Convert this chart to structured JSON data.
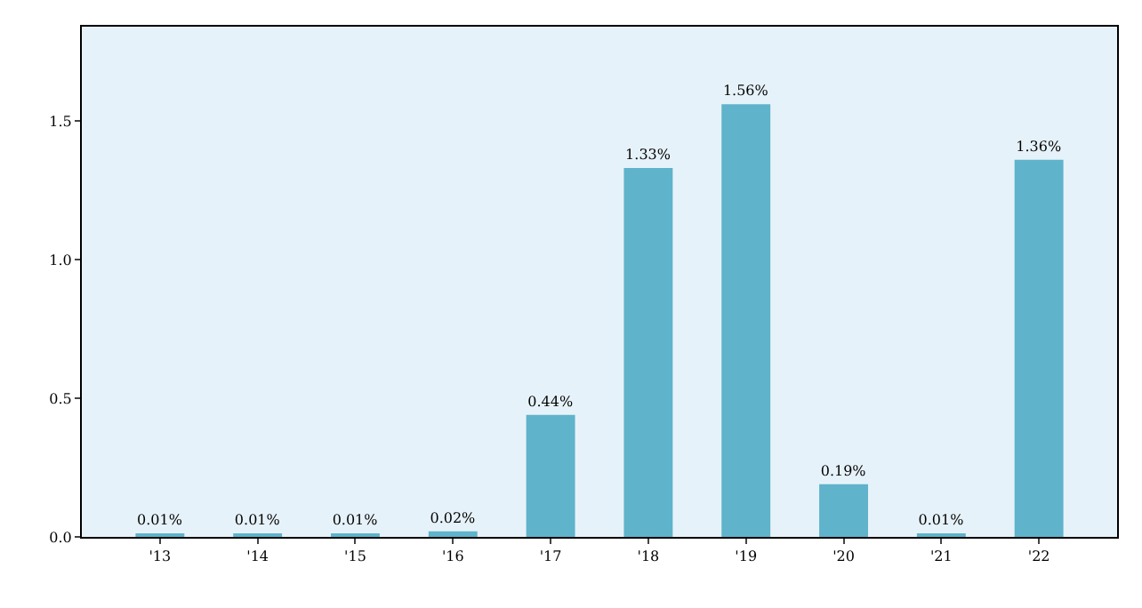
{
  "chart_data": {
    "type": "bar",
    "categories": [
      "'13",
      "'14",
      "'15",
      "'16",
      "'17",
      "'18",
      "'19",
      "'20",
      "'21",
      "'22"
    ],
    "values": [
      0.01,
      0.01,
      0.01,
      0.02,
      0.44,
      1.33,
      1.56,
      0.19,
      0.01,
      1.36
    ],
    "value_labels": [
      "0.01%",
      "0.01%",
      "0.01%",
      "0.02%",
      "0.44%",
      "1.33%",
      "1.56%",
      "0.19%",
      "0.01%",
      "1.36%"
    ],
    "color": "#5fb3cb",
    "ylim": [
      0,
      1.84
    ],
    "yticks": [
      {
        "value": 0,
        "label": "0.0"
      },
      1.5,
      {
        "value": 1,
        "label": "1.0"
      },
      0.5
    ],
    "grid": false,
    "legend": false
  }
}
